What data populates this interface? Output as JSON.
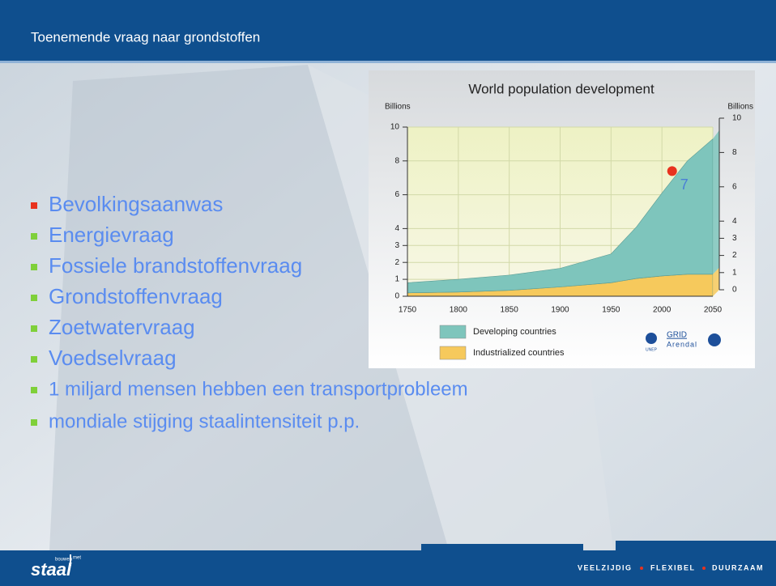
{
  "header": {
    "title": "Toenemende vraag naar grondstoffen"
  },
  "bullets": [
    "Bevolkingsaanwas",
    "Energievraag",
    "Fossiele brandstoffenvraag",
    "Grondstoffenvraag",
    "Zoetwatervraag",
    "Voedselvraag",
    "1 miljard mensen hebben een transportprobleem",
    "mondiale stijging staalintensiteit p.p."
  ],
  "chart_data": {
    "type": "area",
    "stacked": true,
    "title": "World population development",
    "y_label": "Billions",
    "y2_label": "Billions",
    "x": [
      1750,
      1800,
      1850,
      1900,
      1950,
      1975,
      2000,
      2025,
      2050
    ],
    "series": [
      {
        "name": "Developing countries",
        "color": "#7ec5bc",
        "values": [
          0.6,
          0.75,
          0.9,
          1.1,
          1.7,
          3.05,
          4.9,
          6.7,
          8.0
        ]
      },
      {
        "name": "Industrialized countries",
        "color": "#f6c95c",
        "values": [
          0.2,
          0.25,
          0.35,
          0.55,
          0.8,
          1.05,
          1.2,
          1.3,
          1.3
        ]
      }
    ],
    "xlim": [
      1750,
      2050
    ],
    "xticks": [
      1750,
      1800,
      1850,
      1900,
      1950,
      2000,
      2050
    ],
    "ylim": [
      0,
      10
    ],
    "yticks": [
      0,
      1,
      2,
      3,
      4,
      6,
      8,
      10
    ],
    "y2lim": [
      0,
      10
    ],
    "y2ticks": [
      0,
      1,
      2,
      3,
      4,
      6,
      8,
      10
    ],
    "grid": true,
    "annotations": [
      {
        "text": "7",
        "x": 2010,
        "y": 7.4,
        "color": "#e8321e"
      }
    ],
    "credits": [
      "UNEP",
      "GRID",
      "Arendal"
    ]
  },
  "footer": {
    "logo": "staal",
    "logo_tag": [
      "bouwen",
      "met"
    ],
    "slogan": [
      "VEELZIJDIG",
      "FLEXIBEL",
      "DUURZAAM"
    ]
  }
}
